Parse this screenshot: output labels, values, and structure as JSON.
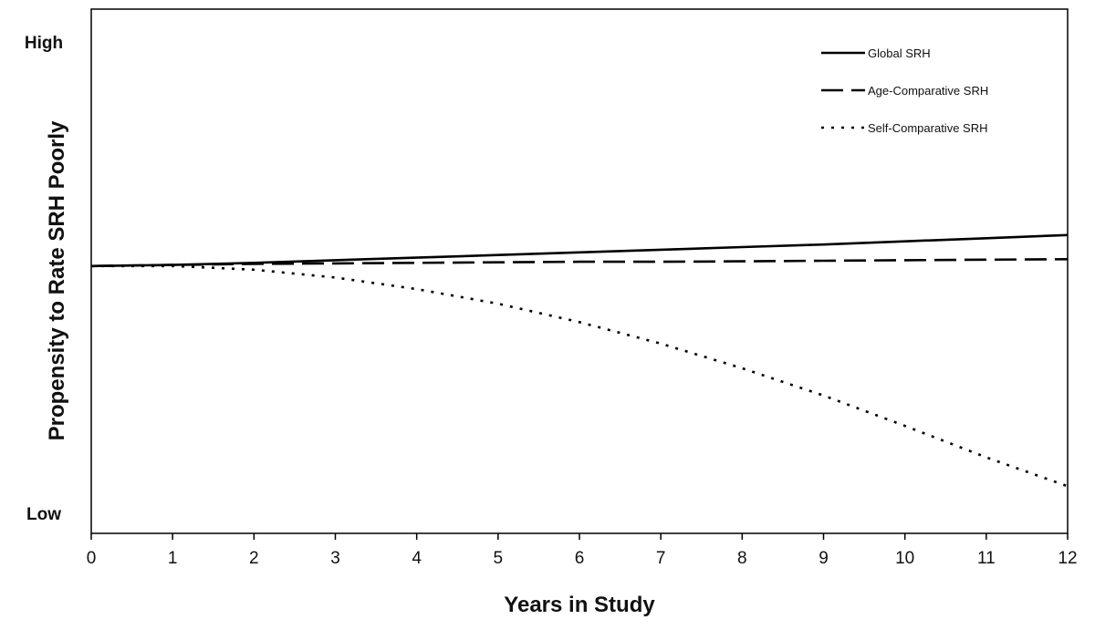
{
  "chart_data": {
    "type": "line",
    "title": "",
    "xlabel": "Years in Study",
    "ylabel": "Propensity to Rate SRH Poorly",
    "y_high_label": "High",
    "y_low_label": "Low",
    "xlim": [
      0,
      12
    ],
    "ylim": [
      0,
      1
    ],
    "x_ticks": [
      0,
      1,
      2,
      3,
      4,
      5,
      6,
      7,
      8,
      9,
      10,
      11,
      12
    ],
    "grid": false,
    "legend_position": "top-right",
    "series": [
      {
        "name": "Global SRH",
        "style": "solid",
        "x": [
          0,
          1,
          2,
          3,
          4,
          5,
          6,
          7,
          8,
          9,
          10,
          11,
          12
        ],
        "y": [
          0.51,
          0.512,
          0.516,
          0.521,
          0.526,
          0.531,
          0.536,
          0.541,
          0.546,
          0.551,
          0.557,
          0.563,
          0.569
        ]
      },
      {
        "name": "Age-Comparative SRH",
        "style": "dashed",
        "x": [
          0,
          1,
          2,
          3,
          4,
          5,
          6,
          7,
          8,
          9,
          10,
          11,
          12
        ],
        "y": [
          0.51,
          0.512,
          0.514,
          0.515,
          0.516,
          0.517,
          0.518,
          0.518,
          0.519,
          0.52,
          0.521,
          0.522,
          0.523
        ]
      },
      {
        "name": "Self-Comparative SRH",
        "style": "dotted",
        "x": [
          0,
          1,
          2,
          3,
          4,
          5,
          6,
          7,
          8,
          9,
          10,
          11,
          12
        ],
        "y": [
          0.51,
          0.51,
          0.503,
          0.488,
          0.466,
          0.438,
          0.403,
          0.362,
          0.315,
          0.263,
          0.205,
          0.145,
          0.09
        ]
      }
    ]
  }
}
